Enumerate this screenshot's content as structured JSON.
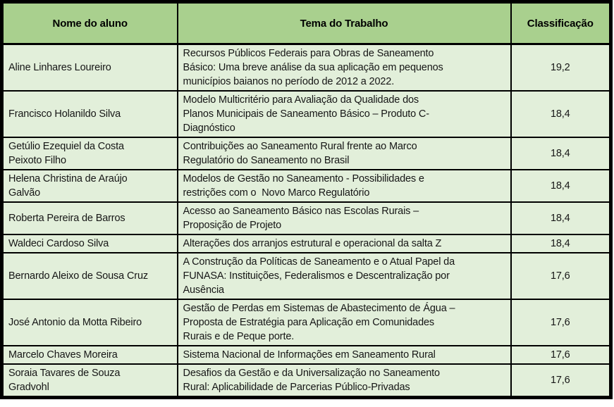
{
  "colors": {
    "header_bg": "#a9d08e",
    "row_bg": "#e2efda",
    "border": "#000000"
  },
  "table": {
    "columns": [
      {
        "label": "Nome do aluno"
      },
      {
        "label": "Tema do Trabalho"
      },
      {
        "label": "Classificação"
      }
    ],
    "rows": [
      {
        "name": "Aline Linhares Loureiro",
        "theme": "Recursos Públicos Federais para Obras de Saneamento\nBásico: Uma breve análise da sua aplicação em pequenos\nmunicípios baianos no período de 2012 a 2022.",
        "score": "19,2"
      },
      {
        "name": "Francisco Holanildo Silva",
        "theme": "Modelo Multicritério para Avaliação da Qualidade dos\nPlanos Municipais de Saneamento Básico – Produto C-\nDiagnóstico",
        "score": "18,4"
      },
      {
        "name": "Getúlio Ezequiel da Costa\nPeixoto Filho",
        "theme": "Contribuições ao Saneamento Rural frente ao Marco\nRegulatório do Saneamento no Brasil",
        "score": "18,4"
      },
      {
        "name": "Helena Christina de Araújo\nGalvão",
        "theme": "Modelos de Gestão no Saneamento - Possibilidades e\nrestrições com o  Novo Marco Regulatório",
        "score": "18,4"
      },
      {
        "name": "Roberta Pereira de Barros",
        "theme": "Acesso ao Saneamento Básico nas Escolas Rurais –\nProposição de Projeto",
        "score": "18,4"
      },
      {
        "name": "Waldeci Cardoso Silva",
        "theme": "Alterações dos arranjos estrutural e operacional da salta Z",
        "score": "18,4"
      },
      {
        "name": "Bernardo Aleixo de Sousa Cruz",
        "theme": "A Construção da Políticas de Saneamento e o Atual Papel da\nFUNASA: Instituições, Federalismos e Descentralização por\nAusência",
        "score": "17,6"
      },
      {
        "name": "José Antonio da Motta Ribeiro",
        "theme": "Gestão de Perdas em Sistemas de Abastecimento de Água –\nProposta de Estratégia para Aplicação em Comunidades\nRurais e de Peque porte.",
        "score": "17,6"
      },
      {
        "name": "Marcelo Chaves Moreira",
        "theme": "Sistema Nacional de Informações em Saneamento Rural",
        "score": "17,6"
      },
      {
        "name": "Soraia Tavares de Souza\nGradvohl",
        "theme": "Desafios da Gestão e da Universalização no Saneamento\nRural: Aplicabilidade de Parcerias Público-Privadas",
        "score": "17,6"
      }
    ]
  }
}
